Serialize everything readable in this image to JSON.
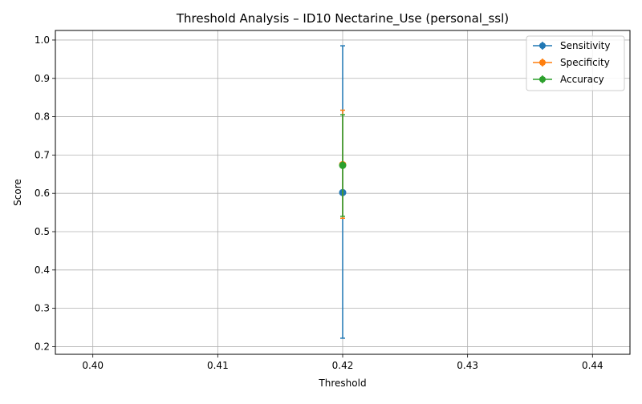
{
  "chart_data": {
    "type": "scatter",
    "title": "Threshold Analysis – ID10 Nectarine_Use (personal_ssl)",
    "xlabel": "Threshold",
    "ylabel": "Score",
    "xlim": [
      0.397,
      0.443
    ],
    "ylim": [
      0.18,
      1.025
    ],
    "xticks": [
      "0.40",
      "0.41",
      "0.42",
      "0.43",
      "0.44"
    ],
    "yticks": [
      "0.2",
      "0.3",
      "0.4",
      "0.5",
      "0.6",
      "0.7",
      "0.8",
      "0.9",
      "1.0"
    ],
    "grid": true,
    "legend_position": "top-right",
    "series": [
      {
        "name": "Sensitivity",
        "color": "#1f77b4",
        "x": [
          0.42
        ],
        "y": [
          0.602
        ],
        "err_low": [
          0.222
        ],
        "err_high": [
          0.985
        ]
      },
      {
        "name": "Specificity",
        "color": "#ff7f0e",
        "x": [
          0.42
        ],
        "y": [
          0.675
        ],
        "err_low": [
          0.535
        ],
        "err_high": [
          0.817
        ]
      },
      {
        "name": "Accuracy",
        "color": "#2ca02c",
        "x": [
          0.42
        ],
        "y": [
          0.673
        ],
        "err_low": [
          0.54
        ],
        "err_high": [
          0.805
        ]
      }
    ]
  }
}
